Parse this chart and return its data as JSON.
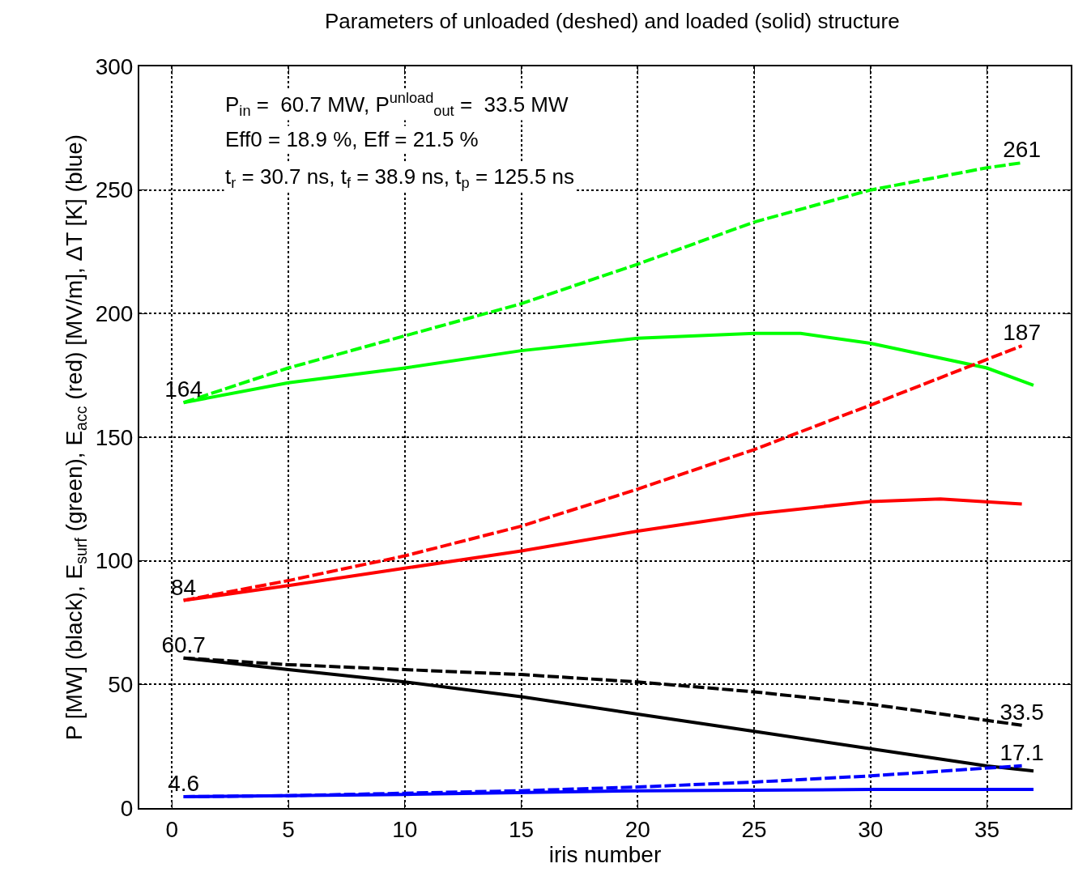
{
  "chart_data": {
    "type": "line",
    "title": "Parameters of unloaded (deshed) and loaded (solid) structure",
    "xlabel": "iris number",
    "ylabel": "P [MW] (black), E$_{surf}$ (green), E$_{acc}$ (red) [MV/m], ΔT [K] (blue)",
    "xlim": [
      -1.4,
      38.6
    ],
    "ylim": [
      0,
      300
    ],
    "xticks": [
      0,
      5,
      10,
      15,
      20,
      25,
      30,
      35
    ],
    "yticks": [
      0,
      50,
      100,
      150,
      200,
      250,
      300
    ],
    "grid": true,
    "marker": "none",
    "series": [
      {
        "color": "#00ff00",
        "line_style": "dashed",
        "x": [
          0.5,
          5,
          10,
          15,
          20,
          25,
          30,
          35,
          36.5
        ],
        "values": [
          164,
          178,
          191,
          204,
          220,
          237,
          250,
          259,
          261
        ],
        "value_labels": [
          "164",
          null,
          null,
          null,
          null,
          null,
          null,
          null,
          "261"
        ]
      },
      {
        "color": "#00ff00",
        "line_style": "solid",
        "x": [
          0.5,
          5,
          10,
          15,
          20,
          25,
          27,
          30,
          35,
          37
        ],
        "values": [
          164,
          172,
          178,
          185,
          190,
          192,
          192,
          188,
          178,
          171
        ]
      },
      {
        "color": "#ff0000",
        "line_style": "dashed",
        "x": [
          0.5,
          5,
          10,
          15,
          20,
          25,
          30,
          36.5
        ],
        "values": [
          84,
          92,
          102,
          114,
          129,
          145,
          163,
          187
        ],
        "value_labels": [
          "84",
          null,
          null,
          null,
          null,
          null,
          null,
          "187"
        ]
      },
      {
        "color": "#ff0000",
        "line_style": "solid",
        "x": [
          0.5,
          5,
          10,
          15,
          20,
          25,
          30,
          33,
          36.5
        ],
        "values": [
          84,
          90,
          97,
          104,
          112,
          119,
          124,
          125,
          123
        ]
      },
      {
        "color": "#000000",
        "line_style": "dashed",
        "x": [
          0.5,
          5,
          10,
          15,
          20,
          25,
          30,
          36.5
        ],
        "values": [
          60.7,
          58,
          56,
          54,
          51,
          47,
          42,
          33.5
        ],
        "value_labels": [
          "60.7",
          null,
          null,
          null,
          null,
          null,
          null,
          "33.5"
        ]
      },
      {
        "color": "#000000",
        "line_style": "solid",
        "x": [
          0.5,
          5,
          10,
          15,
          20,
          25,
          30,
          35,
          37
        ],
        "values": [
          60.7,
          56,
          51,
          45,
          38,
          31,
          24,
          17,
          15
        ]
      },
      {
        "color": "#0000ff",
        "line_style": "dashed",
        "x": [
          0.5,
          5,
          10,
          15,
          20,
          25,
          30,
          36.5
        ],
        "values": [
          4.6,
          5,
          6,
          7,
          8.5,
          10.5,
          13,
          17.1
        ],
        "value_labels": [
          "4.6",
          null,
          null,
          null,
          null,
          null,
          null,
          "17.1"
        ]
      },
      {
        "color": "#0000ff",
        "line_style": "solid",
        "x": [
          0.5,
          10,
          20,
          30,
          37
        ],
        "values": [
          4.6,
          5.5,
          7,
          7.5,
          7.5
        ]
      }
    ],
    "annotations": [
      "P$_{in}$ =  60.7 MW, P$^{unload}$$_{out}$ =  33.5 MW",
      "Eff0 = 18.9 %, Eff = 21.5 %",
      "t$_{r}$ = 30.7 ns, t$_{f}$ = 38.9 ns, t$_{p}$ = 125.5 ns"
    ]
  }
}
